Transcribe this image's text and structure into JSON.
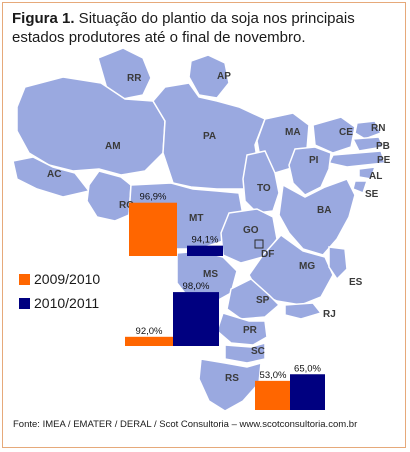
{
  "figure": {
    "title_bold": "Figura 1.",
    "title_rest": " Situação do plantio da soja nos principais estados produtores até o final de novembro.",
    "source": "Fonte: IMEA / EMATER / DERAL / Scot Consultoria – www.scotconsultoria.com.br"
  },
  "map": {
    "state_labels": [
      "RR",
      "AP",
      "AM",
      "PA",
      "MA",
      "CE",
      "RN",
      "PB",
      "PE",
      "AL",
      "SE",
      "PI",
      "AC",
      "RO",
      "MT",
      "TO",
      "BA",
      "GO",
      "DF",
      "MG",
      "ES",
      "MS",
      "SP",
      "RJ",
      "PR",
      "SC",
      "RS"
    ],
    "fill_color": "#9aa9e0",
    "border_color": "#ffffff"
  },
  "chart_data": {
    "type": "bar",
    "title": "Situação do plantio da soja nos principais estados produtores até o final de novembro.",
    "unit": "%",
    "ylim": [
      0,
      100
    ],
    "legend": "left",
    "series": [
      {
        "name": "2009/2010",
        "color": "#ff6600"
      },
      {
        "name": "2010/2011",
        "color": "#000080"
      }
    ],
    "groups": [
      {
        "values": [
          96.9,
          94.1
        ],
        "labels": [
          "96,9%",
          "94,1%"
        ]
      },
      {
        "values": [
          92.0,
          98.0
        ],
        "labels": [
          "92,0%",
          "98,0%"
        ]
      },
      {
        "values": [
          53.0,
          65.0
        ],
        "labels": [
          "53,0%",
          "65,0%"
        ]
      }
    ]
  }
}
